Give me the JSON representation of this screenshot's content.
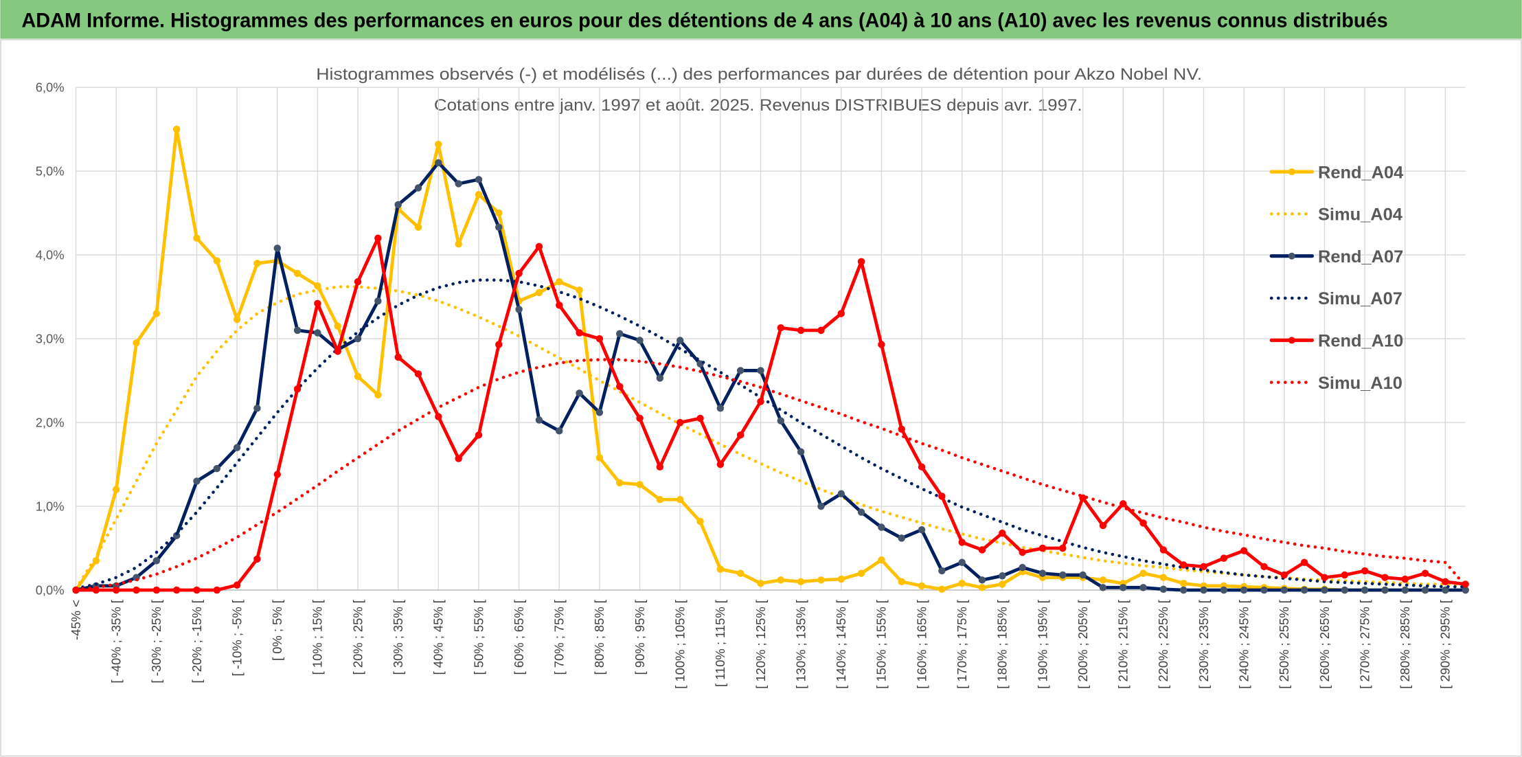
{
  "header": "ADAM Informe. Histogrammes des performances en euros pour des détentions de 4 ans (A04) à 10 ans (A10) avec les revenus connus distribués",
  "chart_data": {
    "type": "line",
    "title": "Histogrammes observés (-) et modélisés (...) des performances par durées de détention pour Akzo Nobel NV.",
    "subtitle": "Cotations entre janv. 1997 et août. 2025. Revenus DISTRIBUES depuis avr. 1997.",
    "categories": [
      "-45% <",
      null,
      "[ -40% ; -35% [",
      null,
      "[ -30% ; -25% [",
      null,
      "[ -20% ; -15% [",
      null,
      "[ -10% ; -5% [",
      null,
      "[ 0% ; 5% [",
      null,
      "[ 10% ; 15% [",
      null,
      "[ 20% ; 25% [",
      null,
      "[ 30% ; 35% [",
      null,
      "[ 40% ; 45% [",
      null,
      "[ 50% ; 55% [",
      null,
      "[ 60% ; 65% [",
      null,
      "[ 70% ; 75% [",
      null,
      "[ 80% ; 85% [",
      null,
      "[ 90% ; 95% [",
      null,
      "[ 100% ; 105% [",
      null,
      "[ 110% ; 115% [",
      null,
      "[ 120% ; 125% [",
      null,
      "[ 130% ; 135% [",
      null,
      "[ 140% ; 145% [",
      null,
      "[ 150% ; 155% [",
      null,
      "[ 160% ; 165% [",
      null,
      "[ 170% ; 175% [",
      null,
      "[ 180% ; 185% [",
      null,
      "[ 190% ; 195% [",
      null,
      "[ 200% ; 205% [",
      null,
      "[ 210% ; 215% [",
      null,
      "[ 220% ; 225% [",
      null,
      "[ 230% ; 235% [",
      null,
      "[ 240% ; 245% [",
      null,
      "[ 250% ; 255% [",
      null,
      "[ 260% ; 265% [",
      null,
      "[ 270% ; 275% [",
      null,
      "[ 280% ; 285% [",
      null,
      "[ 290% ; 295% [",
      null
    ],
    "series": [
      {
        "name": "Rend_A04",
        "color": "#FFC000",
        "style": "solid",
        "marker": "#FFC000",
        "values": [
          0,
          0.35,
          1.2,
          2.95,
          3.3,
          5.5,
          4.2,
          3.93,
          3.23,
          3.9,
          3.93,
          3.78,
          3.63,
          3.15,
          2.55,
          2.33,
          4.55,
          4.33,
          5.32,
          4.13,
          4.72,
          4.5,
          3.45,
          3.55,
          3.68,
          3.58,
          1.58,
          1.28,
          1.26,
          1.08,
          1.08,
          0.82,
          0.25,
          0.2,
          0.08,
          0.12,
          0.1,
          0.12,
          0.13,
          0.2,
          0.36,
          0.1,
          0.05,
          0.01,
          0.08,
          0.03,
          0.07,
          0.22,
          0.15,
          0.15,
          0.15,
          0.12,
          0.08,
          0.2,
          0.15,
          0.08,
          0.05,
          0.05,
          0.04,
          0.03,
          0.02,
          0.01,
          0.01,
          0,
          0,
          0,
          0,
          0,
          0,
          0
        ]
      },
      {
        "name": "Simu_A04",
        "color": "#FFC000",
        "style": "dotted",
        "values": [
          0.02,
          0.4,
          0.85,
          1.3,
          1.75,
          2.15,
          2.55,
          2.85,
          3.1,
          3.3,
          3.43,
          3.53,
          3.58,
          3.62,
          3.62,
          3.6,
          3.57,
          3.52,
          3.45,
          3.36,
          3.26,
          3.15,
          3.03,
          2.9,
          2.77,
          2.64,
          2.5,
          2.37,
          2.24,
          2.11,
          1.98,
          1.86,
          1.74,
          1.62,
          1.51,
          1.4,
          1.3,
          1.2,
          1.11,
          1.02,
          0.94,
          0.87,
          0.8,
          0.73,
          0.67,
          0.61,
          0.56,
          0.51,
          0.47,
          0.43,
          0.39,
          0.35,
          0.32,
          0.29,
          0.27,
          0.24,
          0.22,
          0.2,
          0.18,
          0.16,
          0.15,
          0.13,
          0.12,
          0.11,
          0.1,
          0.09,
          0.08,
          0.07,
          0.07,
          0.06
        ]
      },
      {
        "name": "Rend_A07",
        "color": "#002060",
        "style": "solid",
        "marker": "#44546A",
        "values": [
          0,
          0.05,
          0.05,
          0.15,
          0.35,
          0.65,
          1.3,
          1.45,
          1.7,
          2.17,
          4.08,
          3.1,
          3.07,
          2.87,
          3.0,
          3.45,
          4.6,
          4.8,
          5.1,
          4.85,
          4.9,
          4.33,
          3.35,
          2.03,
          1.9,
          2.35,
          2.12,
          3.06,
          2.98,
          2.53,
          2.98,
          2.7,
          2.17,
          2.62,
          2.62,
          2.02,
          1.65,
          1.0,
          1.15,
          0.93,
          0.75,
          0.62,
          0.72,
          0.23,
          0.33,
          0.12,
          0.17,
          0.27,
          0.2,
          0.18,
          0.18,
          0.03,
          0.03,
          0.03,
          0.01,
          0,
          0,
          0,
          0,
          0,
          0,
          0,
          0,
          0,
          0,
          0,
          0,
          0,
          0,
          0
        ]
      },
      {
        "name": "Simu_A07",
        "color": "#002060",
        "style": "dotted",
        "values": [
          0.02,
          0.07,
          0.15,
          0.27,
          0.45,
          0.67,
          0.93,
          1.22,
          1.52,
          1.82,
          2.12,
          2.4,
          2.65,
          2.88,
          3.08,
          3.25,
          3.4,
          3.52,
          3.61,
          3.67,
          3.7,
          3.7,
          3.68,
          3.63,
          3.56,
          3.48,
          3.38,
          3.27,
          3.15,
          3.02,
          2.88,
          2.74,
          2.6,
          2.45,
          2.3,
          2.15,
          2.0,
          1.86,
          1.72,
          1.58,
          1.45,
          1.33,
          1.21,
          1.1,
          0.99,
          0.9,
          0.81,
          0.72,
          0.65,
          0.58,
          0.51,
          0.45,
          0.4,
          0.35,
          0.31,
          0.27,
          0.24,
          0.21,
          0.18,
          0.16,
          0.14,
          0.12,
          0.1,
          0.09,
          0.08,
          0.07,
          0.06,
          0.05,
          0.04,
          0.04
        ]
      },
      {
        "name": "Rend_A10",
        "color": "#FF0000",
        "style": "solid",
        "marker": "#FF0000",
        "values": [
          0,
          0,
          0,
          0,
          0,
          0,
          0,
          0,
          0.06,
          0.37,
          1.38,
          2.4,
          3.42,
          2.85,
          3.68,
          4.2,
          2.78,
          2.58,
          2.07,
          1.57,
          1.85,
          2.93,
          3.78,
          4.1,
          3.4,
          3.07,
          3.0,
          2.43,
          2.05,
          1.47,
          2.0,
          2.05,
          1.5,
          1.85,
          2.25,
          3.13,
          3.1,
          3.1,
          3.3,
          3.92,
          2.93,
          1.92,
          1.47,
          1.12,
          0.57,
          0.48,
          0.68,
          0.45,
          0.5,
          0.5,
          1.1,
          0.77,
          1.03,
          0.8,
          0.48,
          0.3,
          0.28,
          0.38,
          0.47,
          0.28,
          0.18,
          0.33,
          0.15,
          0.18,
          0.23,
          0.15,
          0.13,
          0.2,
          0.1,
          0.07
        ]
      },
      {
        "name": "Simu_A10",
        "color": "#FF0000",
        "style": "dotted",
        "values": [
          0.01,
          0.03,
          0.07,
          0.12,
          0.19,
          0.28,
          0.38,
          0.5,
          0.63,
          0.78,
          0.93,
          1.09,
          1.25,
          1.42,
          1.58,
          1.74,
          1.9,
          2.04,
          2.18,
          2.3,
          2.42,
          2.52,
          2.6,
          2.66,
          2.71,
          2.74,
          2.75,
          2.75,
          2.73,
          2.7,
          2.66,
          2.61,
          2.55,
          2.49,
          2.42,
          2.34,
          2.26,
          2.18,
          2.1,
          2.01,
          1.93,
          1.84,
          1.75,
          1.67,
          1.58,
          1.5,
          1.42,
          1.34,
          1.26,
          1.19,
          1.12,
          1.05,
          0.98,
          0.92,
          0.86,
          0.81,
          0.75,
          0.7,
          0.66,
          0.61,
          0.57,
          0.53,
          0.5,
          0.46,
          0.43,
          0.4,
          0.38,
          0.35,
          0.33,
          0.05
        ]
      }
    ],
    "ylim": [
      0,
      6
    ],
    "yticks": [
      {
        "value": 0,
        "label": "0,0%"
      },
      {
        "value": 1,
        "label": "1,0%"
      },
      {
        "value": 2,
        "label": "2,0%"
      },
      {
        "value": 3,
        "label": "3,0%"
      },
      {
        "value": 4,
        "label": "4,0%"
      },
      {
        "value": 5,
        "label": "5,0%"
      },
      {
        "value": 6,
        "label": "6,0%"
      }
    ],
    "grid": true,
    "legend": "right"
  }
}
